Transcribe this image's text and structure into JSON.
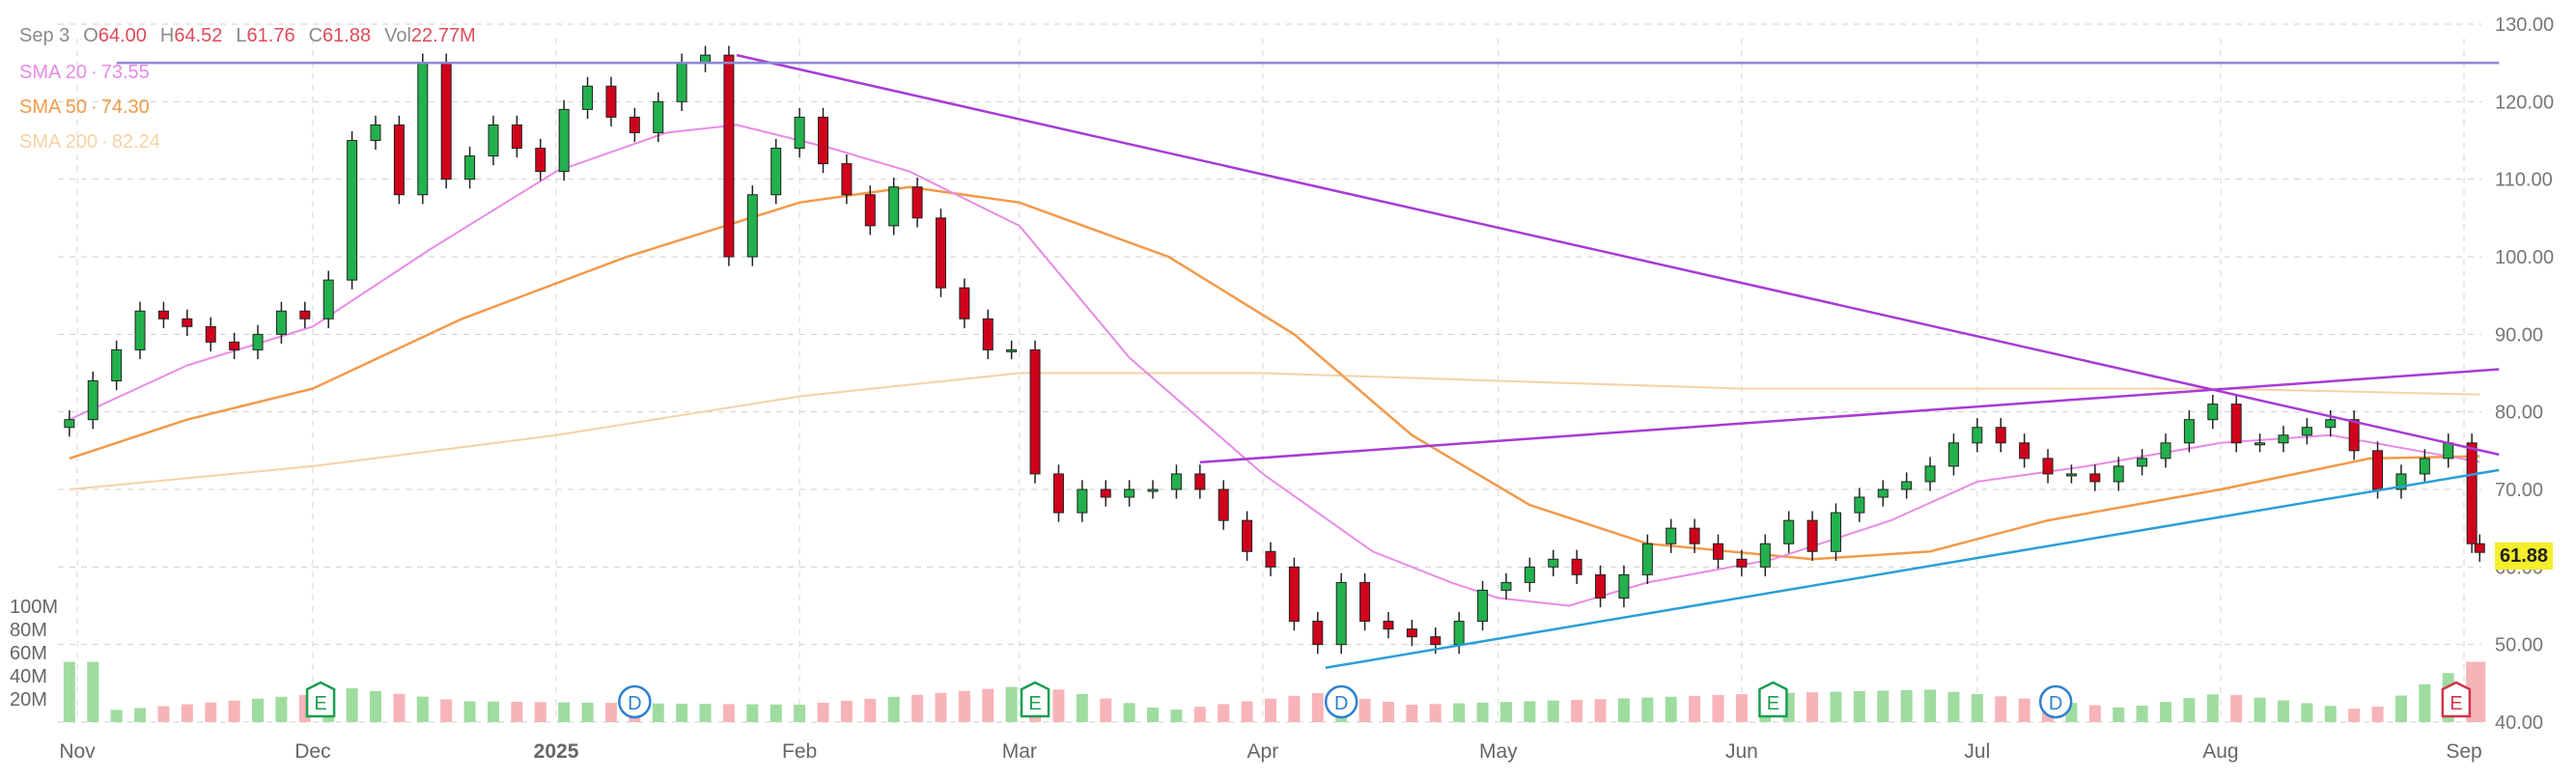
{
  "header": {
    "date": "Sep 3",
    "ohlc": [
      {
        "label": "O",
        "value": "64.00"
      },
      {
        "label": "H",
        "value": "64.52"
      },
      {
        "label": "L",
        "value": "61.76"
      },
      {
        "label": "C",
        "value": "61.88"
      },
      {
        "label": "Vol",
        "value": "22.77M"
      }
    ]
  },
  "indicators": [
    {
      "label": "SMA 20",
      "value": "73.55",
      "color": "#e88be8"
    },
    {
      "label": "SMA 50",
      "value": "74.30",
      "color": "#f29a4a"
    },
    {
      "label": "SMA 200",
      "value": "82.24",
      "color": "#f5d2a6"
    }
  ],
  "last_price": "61.88",
  "colors": {
    "up": "#22b14c",
    "down": "#d0021b",
    "vol_up": "#9fdc9f",
    "vol_down": "#f7b4b8",
    "trendline": "#a83ad6",
    "support": "#2a9fd6",
    "horizontal": "#8c86d6"
  },
  "event_markers": [
    {
      "type": "E",
      "date": "2024-12-02",
      "color": "#1a9e50"
    },
    {
      "type": "D",
      "date": "2025-01-11",
      "color": "#2f80d1"
    },
    {
      "type": "E",
      "date": "2025-03-03",
      "color": "#1a9e50"
    },
    {
      "type": "D",
      "date": "2025-04-11",
      "color": "#2f80d1"
    },
    {
      "type": "E",
      "date": "2025-06-05",
      "color": "#1a9e50"
    },
    {
      "type": "D",
      "date": "2025-07-11",
      "color": "#2f80d1"
    },
    {
      "type": "E",
      "date": "2025-08-31",
      "color": "#d0334a"
    }
  ],
  "chart_data": {
    "type": "candlestick",
    "x_ticks": [
      {
        "label": "Nov",
        "date": "2024-11-01"
      },
      {
        "label": "Dec",
        "date": "2024-12-01"
      },
      {
        "label": "2025",
        "date": "2025-01-01"
      },
      {
        "label": "Feb",
        "date": "2025-02-01"
      },
      {
        "label": "Mar",
        "date": "2025-03-01"
      },
      {
        "label": "Apr",
        "date": "2025-04-01"
      },
      {
        "label": "May",
        "date": "2025-05-01"
      },
      {
        "label": "Jun",
        "date": "2025-06-01"
      },
      {
        "label": "Jul",
        "date": "2025-07-01"
      },
      {
        "label": "Aug",
        "date": "2025-08-01"
      },
      {
        "label": "Sep",
        "date": "2025-09-01"
      }
    ],
    "price_ticks": [
      "40.00",
      "50.00",
      "60.00",
      "70.00",
      "80.00",
      "90.00",
      "100.00",
      "110.00",
      "120.00",
      "130.00"
    ],
    "price_range": [
      40,
      130
    ],
    "volume_ticks": [
      "20M",
      "40M",
      "60M",
      "80M",
      "100M"
    ],
    "volume_range_millions": [
      0,
      100
    ],
    "price_series": [
      {
        "date": "2024-10-31",
        "close": 79
      },
      {
        "date": "2024-11-03",
        "close": 84
      },
      {
        "date": "2024-11-06",
        "close": 88
      },
      {
        "date": "2024-11-09",
        "close": 93
      },
      {
        "date": "2024-11-12",
        "close": 92
      },
      {
        "date": "2024-11-15",
        "close": 91
      },
      {
        "date": "2024-11-18",
        "close": 89
      },
      {
        "date": "2024-11-21",
        "close": 88
      },
      {
        "date": "2024-11-24",
        "close": 90
      },
      {
        "date": "2024-11-27",
        "close": 93
      },
      {
        "date": "2024-11-30",
        "close": 92
      },
      {
        "date": "2024-12-03",
        "close": 97
      },
      {
        "date": "2024-12-06",
        "close": 115
      },
      {
        "date": "2024-12-09",
        "close": 117
      },
      {
        "date": "2024-12-12",
        "close": 108
      },
      {
        "date": "2024-12-15",
        "close": 125
      },
      {
        "date": "2024-12-18",
        "close": 110
      },
      {
        "date": "2024-12-21",
        "close": 113
      },
      {
        "date": "2024-12-24",
        "close": 117
      },
      {
        "date": "2024-12-27",
        "close": 114
      },
      {
        "date": "2024-12-30",
        "close": 111
      },
      {
        "date": "2025-01-02",
        "close": 119
      },
      {
        "date": "2025-01-05",
        "close": 122
      },
      {
        "date": "2025-01-08",
        "close": 118
      },
      {
        "date": "2025-01-11",
        "close": 116
      },
      {
        "date": "2025-01-14",
        "close": 120
      },
      {
        "date": "2025-01-17",
        "close": 125
      },
      {
        "date": "2025-01-20",
        "close": 126
      },
      {
        "date": "2025-01-23",
        "close": 100
      },
      {
        "date": "2025-01-26",
        "close": 108
      },
      {
        "date": "2025-01-29",
        "close": 114
      },
      {
        "date": "2025-02-01",
        "close": 118
      },
      {
        "date": "2025-02-04",
        "close": 112
      },
      {
        "date": "2025-02-07",
        "close": 108
      },
      {
        "date": "2025-02-10",
        "close": 104
      },
      {
        "date": "2025-02-13",
        "close": 109
      },
      {
        "date": "2025-02-16",
        "close": 105
      },
      {
        "date": "2025-02-19",
        "close": 96
      },
      {
        "date": "2025-02-22",
        "close": 92
      },
      {
        "date": "2025-02-25",
        "close": 88
      },
      {
        "date": "2025-02-28",
        "close": 88
      },
      {
        "date": "2025-03-03",
        "close": 72
      },
      {
        "date": "2025-03-06",
        "close": 67
      },
      {
        "date": "2025-03-09",
        "close": 70
      },
      {
        "date": "2025-03-12",
        "close": 69
      },
      {
        "date": "2025-03-15",
        "close": 70
      },
      {
        "date": "2025-03-18",
        "close": 70
      },
      {
        "date": "2025-03-21",
        "close": 72
      },
      {
        "date": "2025-03-24",
        "close": 70
      },
      {
        "date": "2025-03-27",
        "close": 66
      },
      {
        "date": "2025-03-30",
        "close": 62
      },
      {
        "date": "2025-04-02",
        "close": 60
      },
      {
        "date": "2025-04-05",
        "close": 53
      },
      {
        "date": "2025-04-08",
        "close": 50
      },
      {
        "date": "2025-04-11",
        "close": 58
      },
      {
        "date": "2025-04-14",
        "close": 53
      },
      {
        "date": "2025-04-17",
        "close": 52
      },
      {
        "date": "2025-04-20",
        "close": 51
      },
      {
        "date": "2025-04-23",
        "close": 50
      },
      {
        "date": "2025-04-26",
        "close": 53
      },
      {
        "date": "2025-04-29",
        "close": 57
      },
      {
        "date": "2025-05-02",
        "close": 58
      },
      {
        "date": "2025-05-05",
        "close": 60
      },
      {
        "date": "2025-05-08",
        "close": 61
      },
      {
        "date": "2025-05-11",
        "close": 59
      },
      {
        "date": "2025-05-14",
        "close": 56
      },
      {
        "date": "2025-05-17",
        "close": 59
      },
      {
        "date": "2025-05-20",
        "close": 63
      },
      {
        "date": "2025-05-23",
        "close": 65
      },
      {
        "date": "2025-05-26",
        "close": 63
      },
      {
        "date": "2025-05-29",
        "close": 61
      },
      {
        "date": "2025-06-01",
        "close": 60
      },
      {
        "date": "2025-06-04",
        "close": 63
      },
      {
        "date": "2025-06-07",
        "close": 66
      },
      {
        "date": "2025-06-10",
        "close": 62
      },
      {
        "date": "2025-06-13",
        "close": 67
      },
      {
        "date": "2025-06-16",
        "close": 69
      },
      {
        "date": "2025-06-19",
        "close": 70
      },
      {
        "date": "2025-06-22",
        "close": 71
      },
      {
        "date": "2025-06-25",
        "close": 73
      },
      {
        "date": "2025-06-28",
        "close": 76
      },
      {
        "date": "2025-07-01",
        "close": 78
      },
      {
        "date": "2025-07-04",
        "close": 76
      },
      {
        "date": "2025-07-07",
        "close": 74
      },
      {
        "date": "2025-07-10",
        "close": 72
      },
      {
        "date": "2025-07-13",
        "close": 72
      },
      {
        "date": "2025-07-16",
        "close": 71
      },
      {
        "date": "2025-07-19",
        "close": 73
      },
      {
        "date": "2025-07-22",
        "close": 74
      },
      {
        "date": "2025-07-25",
        "close": 76
      },
      {
        "date": "2025-07-28",
        "close": 79
      },
      {
        "date": "2025-07-31",
        "close": 81
      },
      {
        "date": "2025-08-03",
        "close": 76
      },
      {
        "date": "2025-08-06",
        "close": 76
      },
      {
        "date": "2025-08-09",
        "close": 77
      },
      {
        "date": "2025-08-12",
        "close": 78
      },
      {
        "date": "2025-08-15",
        "close": 79
      },
      {
        "date": "2025-08-18",
        "close": 75
      },
      {
        "date": "2025-08-21",
        "close": 70
      },
      {
        "date": "2025-08-24",
        "close": 72
      },
      {
        "date": "2025-08-27",
        "close": 74
      },
      {
        "date": "2025-08-30",
        "close": 76
      },
      {
        "date": "2025-09-02",
        "close": 63
      },
      {
        "date": "2025-09-03",
        "close": 61.88
      }
    ],
    "sma20": [
      {
        "date": "2024-10-31",
        "value": 79
      },
      {
        "date": "2024-11-15",
        "value": 86
      },
      {
        "date": "2024-12-01",
        "value": 91
      },
      {
        "date": "2024-12-16",
        "value": 101
      },
      {
        "date": "2025-01-01",
        "value": 111
      },
      {
        "date": "2025-01-15",
        "value": 116
      },
      {
        "date": "2025-01-24",
        "value": 117
      },
      {
        "date": "2025-02-05",
        "value": 114
      },
      {
        "date": "2025-02-15",
        "value": 111
      },
      {
        "date": "2025-03-01",
        "value": 104
      },
      {
        "date": "2025-03-15",
        "value": 87
      },
      {
        "date": "2025-04-01",
        "value": 72
      },
      {
        "date": "2025-04-15",
        "value": 62
      },
      {
        "date": "2025-04-25",
        "value": 58
      },
      {
        "date": "2025-05-01",
        "value": 56
      },
      {
        "date": "2025-05-10",
        "value": 55
      },
      {
        "date": "2025-05-20",
        "value": 58
      },
      {
        "date": "2025-06-05",
        "value": 61
      },
      {
        "date": "2025-06-20",
        "value": 66
      },
      {
        "date": "2025-07-01",
        "value": 71
      },
      {
        "date": "2025-07-15",
        "value": 73
      },
      {
        "date": "2025-08-01",
        "value": 76
      },
      {
        "date": "2025-08-15",
        "value": 77
      },
      {
        "date": "2025-09-03",
        "value": 73.55
      }
    ],
    "sma50": [
      {
        "date": "2024-10-31",
        "value": 74
      },
      {
        "date": "2024-11-15",
        "value": 79
      },
      {
        "date": "2024-12-01",
        "value": 83
      },
      {
        "date": "2024-12-20",
        "value": 92
      },
      {
        "date": "2025-01-10",
        "value": 100
      },
      {
        "date": "2025-02-01",
        "value": 107
      },
      {
        "date": "2025-02-15",
        "value": 109
      },
      {
        "date": "2025-03-01",
        "value": 107
      },
      {
        "date": "2025-03-20",
        "value": 100
      },
      {
        "date": "2025-04-05",
        "value": 90
      },
      {
        "date": "2025-04-20",
        "value": 77
      },
      {
        "date": "2025-05-05",
        "value": 68
      },
      {
        "date": "2025-05-20",
        "value": 63
      },
      {
        "date": "2025-06-10",
        "value": 61
      },
      {
        "date": "2025-06-25",
        "value": 62
      },
      {
        "date": "2025-07-10",
        "value": 66
      },
      {
        "date": "2025-08-01",
        "value": 70
      },
      {
        "date": "2025-08-20",
        "value": 74
      },
      {
        "date": "2025-09-03",
        "value": 74.3
      }
    ],
    "sma200": [
      {
        "date": "2024-10-31",
        "value": 70
      },
      {
        "date": "2024-12-01",
        "value": 73
      },
      {
        "date": "2025-01-01",
        "value": 77
      },
      {
        "date": "2025-02-01",
        "value": 82
      },
      {
        "date": "2025-03-01",
        "value": 85
      },
      {
        "date": "2025-04-01",
        "value": 85
      },
      {
        "date": "2025-05-01",
        "value": 84
      },
      {
        "date": "2025-06-01",
        "value": 83
      },
      {
        "date": "2025-07-01",
        "value": 83
      },
      {
        "date": "2025-08-01",
        "value": 83
      },
      {
        "date": "2025-09-03",
        "value": 82.24
      }
    ],
    "volume_millions": [
      {
        "date": "2024-11-05",
        "value": 10
      },
      {
        "date": "2024-12-03",
        "value": 25
      },
      {
        "date": "2024-12-05",
        "value": 30
      },
      {
        "date": "2024-12-20",
        "value": 18
      },
      {
        "date": "2025-01-15",
        "value": 16
      },
      {
        "date": "2025-02-01",
        "value": 15
      },
      {
        "date": "2025-03-03",
        "value": 32
      },
      {
        "date": "2025-03-20",
        "value": 10
      },
      {
        "date": "2025-04-08",
        "value": 25
      },
      {
        "date": "2025-04-20",
        "value": 15
      },
      {
        "date": "2025-05-15",
        "value": 20
      },
      {
        "date": "2025-06-05",
        "value": 25
      },
      {
        "date": "2025-06-25",
        "value": 28
      },
      {
        "date": "2025-07-20",
        "value": 12
      },
      {
        "date": "2025-08-01",
        "value": 25
      },
      {
        "date": "2025-08-20",
        "value": 10
      },
      {
        "date": "2025-09-02",
        "value": 52
      }
    ],
    "trendlines": [
      {
        "name": "resistance",
        "start": {
          "date": "2025-01-24",
          "price": 126
        },
        "end": {
          "date": "2025-09-03",
          "price": 74.5
        }
      },
      {
        "name": "upper-channel",
        "start": {
          "date": "2025-03-24",
          "price": 73.5
        },
        "end": {
          "date": "2025-09-03",
          "price": 85.5
        }
      },
      {
        "name": "support",
        "start": {
          "date": "2025-04-09",
          "price": 47
        },
        "end": {
          "date": "2025-09-03",
          "price": 72.5
        }
      },
      {
        "name": "horizontal",
        "start": {
          "date": "2024-11-06",
          "price": 125
        },
        "end": {
          "date": "2025-09-03",
          "price": 125
        }
      }
    ]
  }
}
